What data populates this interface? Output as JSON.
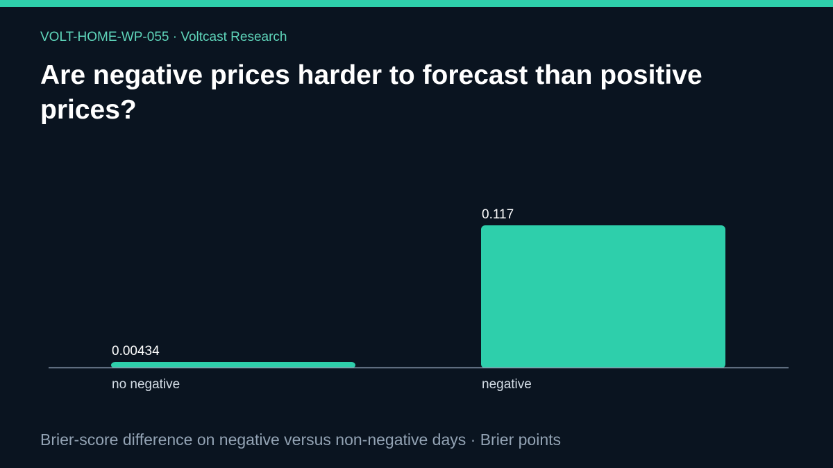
{
  "header": {
    "kicker": "VOLT-HOME-WP-055 · Voltcast Research",
    "title": "Are negative prices harder to forecast than positive prices?"
  },
  "footer": {
    "note": "Brier-score difference on negative versus non-negative days · Brier points"
  },
  "colors": {
    "background": "#0a1420",
    "accent": "#2ecfab",
    "axis": "#8a9bb0",
    "text": "#ffffff",
    "muted": "#93a3b4"
  },
  "chart_data": {
    "type": "bar",
    "categories": [
      "no negative",
      "negative"
    ],
    "values": [
      0.00434,
      0.117
    ],
    "value_labels": [
      "0.00434",
      "0.117"
    ],
    "ylim": [
      0,
      0.117
    ],
    "grid": false,
    "legend": "none"
  }
}
